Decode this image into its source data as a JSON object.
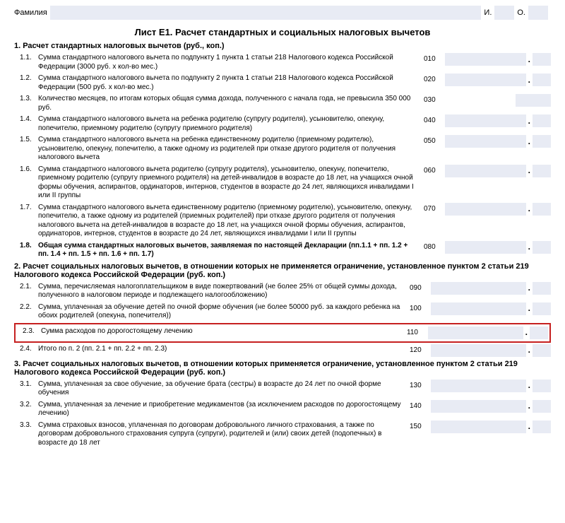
{
  "header": {
    "surname_label": "Фамилия",
    "i_label": "И.",
    "o_label": "О."
  },
  "sheet_title": "Лист Е1. Расчет стандартных и социальных налоговых вычетов",
  "section1_title": "1. Расчет стандартных налоговых вычетов (руб., коп.)",
  "section2_title": "2. Расчет социальных налоговых вычетов, в отношении которых не применяется ограничение, установленное пунктом 2 статьи 219 Налогового кодекса Российской Федерации (руб. коп.)",
  "section3_title": "3. Расчет социальных налоговых вычетов, в отношении которых применяется ограничение, установленное пунктом 2 статьи 219 Налогового кодекса Российской Федерации (руб. коп.)",
  "rows1": [
    {
      "num": "1.1.",
      "text": "Сумма стандартного налогового вычета по подпункту 1 пункта 1 статьи 218 Налогового кодекса Российской Федерации (3000 руб. x кол-во мес.)",
      "code": "010"
    },
    {
      "num": "1.2.",
      "text": "Сумма стандартного налогового вычета по подпункту 2 пункта 1 статьи 218 Налогового кодекса Российской Федерации (500 руб. x кол-во мес.)",
      "code": "020"
    },
    {
      "num": "1.3.",
      "text": "Количество месяцев, по итогам которых общая сумма дохода, полученного с начала года, не превысила 350 000 руб.",
      "code": "030"
    },
    {
      "num": "1.4.",
      "text": "Сумма стандартного налогового вычета на ребенка родителю (супругу родителя), усыновителю, опекуну, попечителю, приемному родителю (супругу приемного родителя)",
      "code": "040"
    },
    {
      "num": "1.5.",
      "text": "Сумма стандартного налогового вычета на ребенка единственному родителю (приемному родителю), усыновителю, опекуну, попечителю, а также одному из родителей при отказе другого родителя от получения налогового вычета",
      "code": "050"
    },
    {
      "num": "1.6.",
      "text": "Сумма стандартного налогового вычета родителю (супругу родителя), усыновителю, опекуну, попечителю, приемному родителю (супругу приемного родителя) на детей-инвалидов в возрасте до 18 лет, на учащихся очной формы обучения, аспирантов, ординаторов, интернов, студентов в возрасте до 24 лет, являющихся инвалидами I или II группы",
      "code": "060"
    },
    {
      "num": "1.7.",
      "text": "Сумма стандартного налогового вычета единственному родителю (приемному родителю), усыновителю, опекуну, попечителю, а также одному из родителей (приемных родителей) при отказе другого родителя от получения налогового вычета на детей-инвалидов в возрасте до 18 лет, на учащихся очной формы обучения, аспирантов, ординаторов, интернов, студентов в возрасте до 24 лет, являющихся инвалидами I или II группы",
      "code": "070"
    },
    {
      "num": "1.8.",
      "text": "Общая сумма стандартных налоговых вычетов, заявляемая по настоящей Декларации (пп.1.1 + пп. 1.2 + пп. 1.4 + пп. 1.5 + пп. 1.6 + пп. 1.7)",
      "code": "080",
      "bold": true
    }
  ],
  "rows2": [
    {
      "num": "2.1.",
      "text": "Сумма, перечисляемая налогоплательщиком в виде пожертвований (не более 25% от общей суммы дохода, полученного в налоговом периоде и подлежащего налогообложению)",
      "code": "090"
    },
    {
      "num": "2.2.",
      "text": "Сумма, уплаченная за обучение детей по очной форме обучения (не более 50000 руб. за каждого ребенка на обоих родителей (опекуна, попечителя))",
      "code": "100"
    },
    {
      "num": "2.3.",
      "text": "Сумма расходов по дорогостоящему лечению",
      "code": "110",
      "hl": true
    },
    {
      "num": "2.4.",
      "text": "Итого по п. 2 (пп. 2.1 + пп. 2.2 + пп. 2.3)",
      "code": "120"
    }
  ],
  "rows3": [
    {
      "num": "3.1.",
      "text": "Сумма, уплаченная за свое обучение, за обучение брата (сестры) в возрасте до 24 лет по очной форме обучения",
      "code": "130"
    },
    {
      "num": "3.2.",
      "text": "Сумма, уплаченная за лечение и приобретение медикаментов (за исключением расходов по дорогостоящему лечению)",
      "code": "140"
    },
    {
      "num": "3.3.",
      "text": "Сумма страховых взносов, уплаченная по договорам добровольного личного страхования, а также по договорам добровольного страхования супруга (супруги), родителей и (или) своих детей (подопечных) в возрасте до 18 лет",
      "code": "150"
    }
  ],
  "colors": {
    "field_bg": "#e8ebf4",
    "highlight_border": "#c62020"
  }
}
